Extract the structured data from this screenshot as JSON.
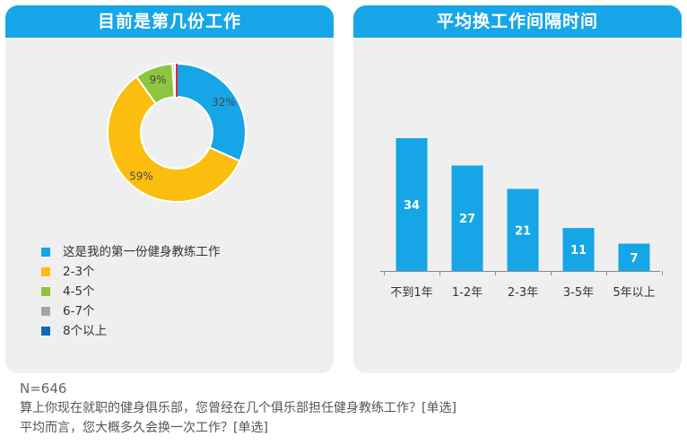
{
  "left_panel": {
    "title": "目前是第几份工作"
  },
  "right_panel": {
    "title": "平均换工作间隔时间"
  },
  "footer": {
    "n": "N=646",
    "q1": "算上你现在就职的健身俱乐部，您曾经在几个俱乐部担任健身教练工作？[单选]",
    "q2": "平均而言，您大概多久会换一次工作？[单选]"
  },
  "chart_data": [
    {
      "type": "pie",
      "donut": true,
      "title": "目前是第几份工作",
      "labels": [
        "这是我的第一份健身教练工作",
        "2-3个",
        "4-5个",
        "6-7个",
        "8个以上"
      ],
      "values": [
        32,
        59,
        9,
        0.6,
        0.4
      ],
      "data_labels": [
        "32%",
        "59%",
        "9%",
        "",
        ""
      ],
      "colors": [
        "#16a5e6",
        "#fbbe0f",
        "#8cc63f",
        "#a5a5a5",
        "#0d6ab5"
      ],
      "divider_color": "#e8243c",
      "legend_placement": "bottom-left"
    },
    {
      "type": "bar",
      "title": "平均换工作间隔时间",
      "categories": [
        "不到1年",
        "1-2年",
        "2-3年",
        "3-5年",
        "5年以上"
      ],
      "values": [
        34,
        27,
        21,
        11,
        7
      ],
      "data_labels": [
        "34",
        "27",
        "21",
        "11",
        "7"
      ],
      "ylim": [
        0,
        34
      ],
      "grid": false,
      "color": "#16a5e6"
    }
  ]
}
